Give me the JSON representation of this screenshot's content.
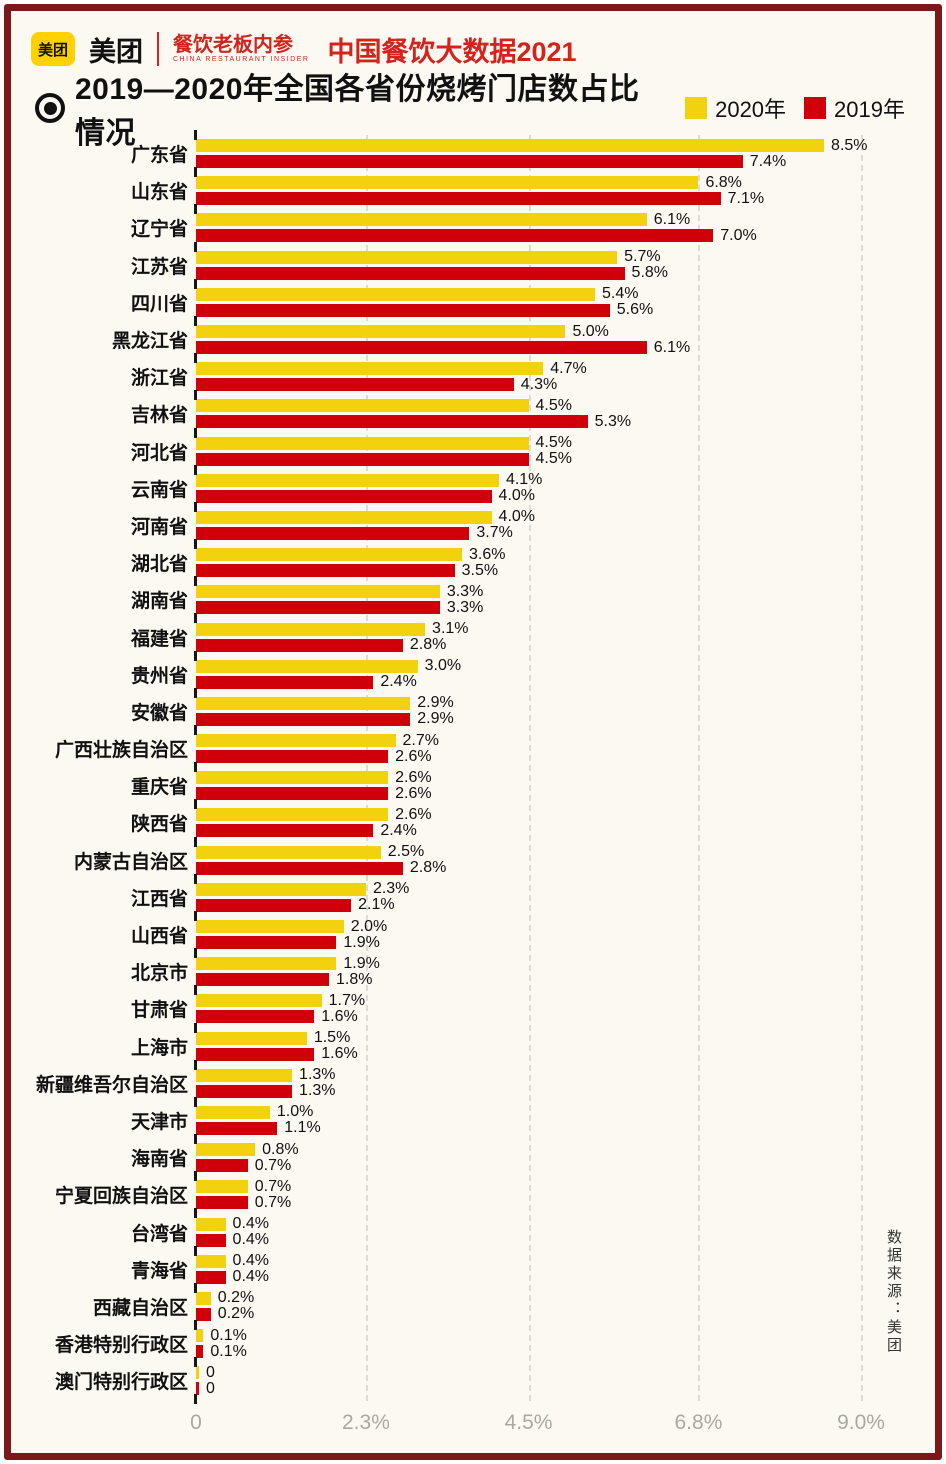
{
  "header": {
    "logo_badge": "美团",
    "brand": "美团",
    "series_title": "餐饮老板内参",
    "series_subtitle": "CHINA RESTAURANT INSIDER",
    "report_title": "中国餐饮大数据2021"
  },
  "chart_title": "2019—2020年全国各省份烧烤门店数占比情况",
  "legend": [
    {
      "label": "2020年",
      "color": "#f2d20e"
    },
    {
      "label": "2019年",
      "color": "#d0000b"
    }
  ],
  "source_note": "数据来源：美团",
  "colors": {
    "bar_2020": "#f2d20e",
    "bar_2019": "#d0000b",
    "frame": "#7c181a",
    "accent_red_text": "#d3231c",
    "background": "#fcf9f3",
    "axis_text": "#a9a9a4"
  },
  "chart_data": {
    "type": "bar",
    "orientation": "horizontal",
    "title": "2019—2020年全国各省份烧烤门店数占比情况",
    "xlim": [
      0,
      9.0
    ],
    "x_ticks": [
      "0",
      "2.3%",
      "4.5%",
      "6.8%",
      "9.0%"
    ],
    "x_tick_values": [
      0,
      2.3,
      4.5,
      6.8,
      9.0
    ],
    "grid": "dashed-vertical",
    "legend_position": "top-right",
    "categories": [
      "广东省",
      "山东省",
      "辽宁省",
      "江苏省",
      "四川省",
      "黑龙江省",
      "浙江省",
      "吉林省",
      "河北省",
      "云南省",
      "河南省",
      "湖北省",
      "湖南省",
      "福建省",
      "贵州省",
      "安徽省",
      "广西壮族自治区",
      "重庆省",
      "陕西省",
      "内蒙古自治区",
      "江西省",
      "山西省",
      "北京市",
      "甘肃省",
      "上海市",
      "新疆维吾尔自治区",
      "天津市",
      "海南省",
      "宁夏回族自治区",
      "台湾省",
      "青海省",
      "西藏自治区",
      "香港特别行政区",
      "澳门特别行政区"
    ],
    "series": [
      {
        "name": "2020年",
        "color": "#f2d20e",
        "values": [
          8.5,
          6.8,
          6.1,
          5.7,
          5.4,
          5.0,
          4.7,
          4.5,
          4.5,
          4.1,
          4.0,
          3.6,
          3.3,
          3.1,
          3.0,
          2.9,
          2.7,
          2.6,
          2.6,
          2.5,
          2.3,
          2.0,
          1.9,
          1.7,
          1.5,
          1.3,
          1.0,
          0.8,
          0.7,
          0.4,
          0.4,
          0.2,
          0.1,
          0
        ],
        "labels": [
          "8.5%",
          "6.8%",
          "6.1%",
          "5.7%",
          "5.4%",
          "5.0%",
          "4.7%",
          "4.5%",
          "4.5%",
          "4.1%",
          "4.0%",
          "3.6%",
          "3.3%",
          "3.1%",
          "3.0%",
          "2.9%",
          "2.7%",
          "2.6%",
          "2.6%",
          "2.5%",
          "2.3%",
          "2.0%",
          "1.9%",
          "1.7%",
          "1.5%",
          "1.3%",
          "1.0%",
          "0.8%",
          "0.7%",
          "0.4%",
          "0.4%",
          "0.2%",
          "0.1%",
          "0"
        ]
      },
      {
        "name": "2019年",
        "color": "#d0000b",
        "values": [
          7.4,
          7.1,
          7.0,
          5.8,
          5.6,
          6.1,
          4.3,
          5.3,
          4.5,
          4.0,
          3.7,
          3.5,
          3.3,
          2.8,
          2.4,
          2.9,
          2.6,
          2.6,
          2.4,
          2.8,
          2.1,
          1.9,
          1.8,
          1.6,
          1.6,
          1.3,
          1.1,
          0.7,
          0.7,
          0.4,
          0.4,
          0.2,
          0.1,
          0
        ],
        "labels": [
          "7.4%",
          "7.1%",
          "7.0%",
          "5.8%",
          "5.6%",
          "6.1%",
          "4.3%",
          "5.3%",
          "4.5%",
          "4.0%",
          "3.7%",
          "3.5%",
          "3.3%",
          "2.8%",
          "2.4%",
          "2.9%",
          "2.6%",
          "2.6%",
          "2.4%",
          "2.8%",
          "2.1%",
          "1.9%",
          "1.8%",
          "1.6%",
          "1.6%",
          "1.3%",
          "1.1%",
          "0.7%",
          "0.7%",
          "0.4%",
          "0.4%",
          "0.2%",
          "0.1%",
          "0"
        ]
      }
    ]
  }
}
